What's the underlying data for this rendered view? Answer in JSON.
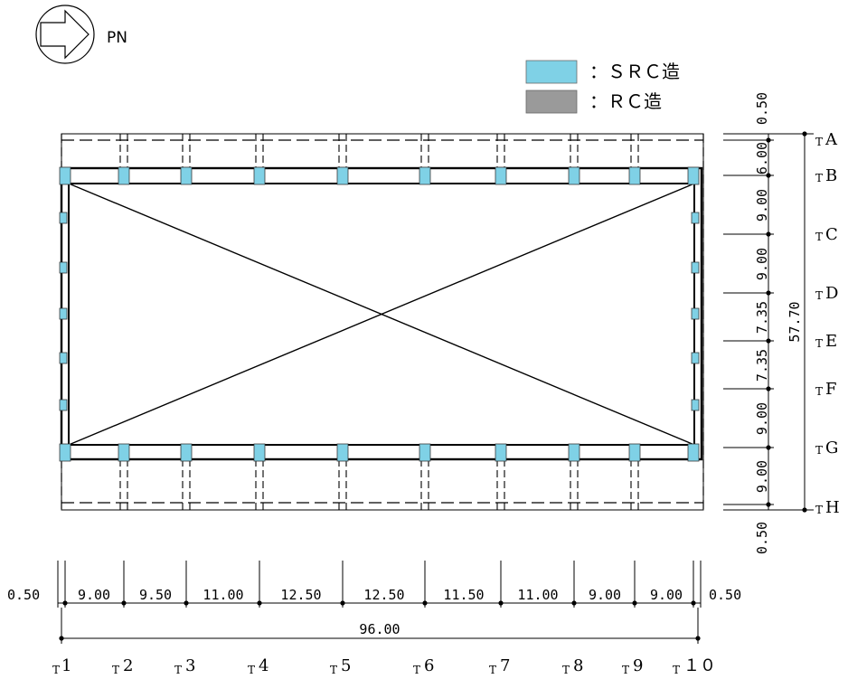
{
  "north_label": "PN",
  "legend": [
    {
      "label": "：ＳＲＣ造",
      "color": "#7fd1e6"
    },
    {
      "label": "：ＲＣ造",
      "color": "#9a9a9a"
    }
  ],
  "bottom_spans": {
    "left_margin": "0.50",
    "values": [
      "9.00",
      "9.50",
      "11.00",
      "12.50",
      "12.50",
      "11.50",
      "11.00",
      "9.00",
      "9.00"
    ],
    "right_margin": "0.50",
    "total": "96.00"
  },
  "right_spans": {
    "top_margin": "0.50",
    "values": [
      "6.00",
      "9.00",
      "9.00",
      "7.35",
      "7.35",
      "9.00",
      "9.00"
    ],
    "bottom_margin": "0.50",
    "total": "57.70"
  },
  "grid_columns": [
    {
      "prefix": "T",
      "label": "1"
    },
    {
      "prefix": "T",
      "label": "2"
    },
    {
      "prefix": "T",
      "label": "3"
    },
    {
      "prefix": "T",
      "label": "4"
    },
    {
      "prefix": "T",
      "label": "5"
    },
    {
      "prefix": "T",
      "label": "6"
    },
    {
      "prefix": "T",
      "label": "7"
    },
    {
      "prefix": "T",
      "label": "8"
    },
    {
      "prefix": "T",
      "label": "9"
    },
    {
      "prefix": "T",
      "label": "１０"
    }
  ],
  "grid_rows": [
    {
      "prefix": "T",
      "label": "A"
    },
    {
      "prefix": "T",
      "label": "B"
    },
    {
      "prefix": "T",
      "label": "C"
    },
    {
      "prefix": "T",
      "label": "D"
    },
    {
      "prefix": "T",
      "label": "E"
    },
    {
      "prefix": "T",
      "label": "F"
    },
    {
      "prefix": "T",
      "label": "G"
    },
    {
      "prefix": "T",
      "label": "H"
    }
  ]
}
